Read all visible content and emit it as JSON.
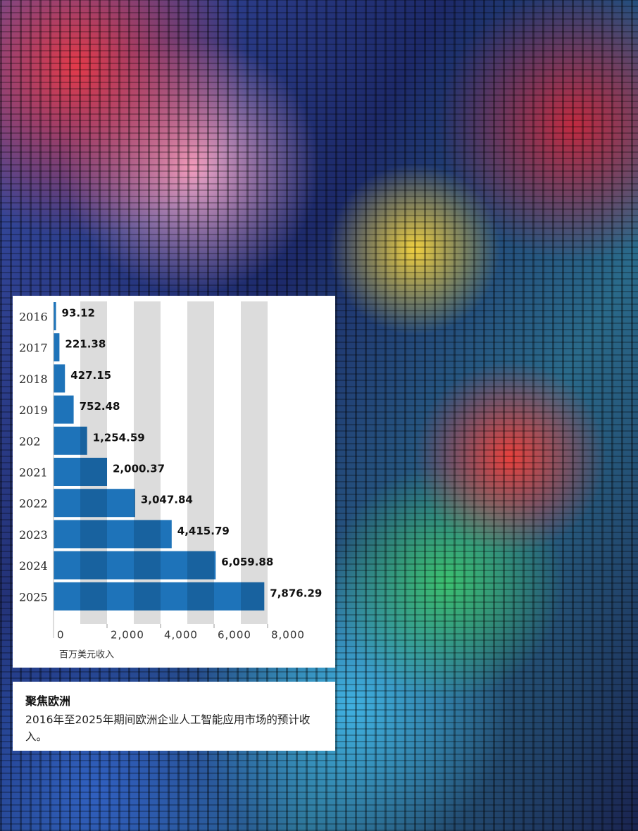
{
  "chart_data": {
    "type": "bar",
    "orientation": "horizontal",
    "categories": [
      "2016",
      "2017",
      "2018",
      "2019",
      "202",
      "2021",
      "2022",
      "2023",
      "2024",
      "2025"
    ],
    "values": [
      93.12,
      221.38,
      427.15,
      752.48,
      1254.59,
      2000.37,
      3047.84,
      4415.79,
      6059.88,
      7876.29
    ],
    "value_labels": [
      "93.12",
      "221.38",
      "427.15",
      "752.48",
      "1,254.59",
      "2,000.37",
      "3,047.84",
      "4,415.79",
      "6,059.88",
      "7,876.29"
    ],
    "color": "#0b67b3",
    "xlim": [
      0,
      8000
    ],
    "xticks": [
      0,
      {
        "value": 2000,
        "label": "2,000"
      },
      {
        "value": 4000,
        "label": "4,000"
      },
      {
        "value": 6000,
        "label": "6,000"
      },
      {
        "value": 8000,
        "label": "8,000"
      }
    ],
    "xlabel": "百万美元收入",
    "grid": "bands"
  },
  "caption": {
    "title": "聚焦欧洲",
    "text": "2016年至2025年期间欧洲企业人工智能应用市场的预计收入。"
  }
}
